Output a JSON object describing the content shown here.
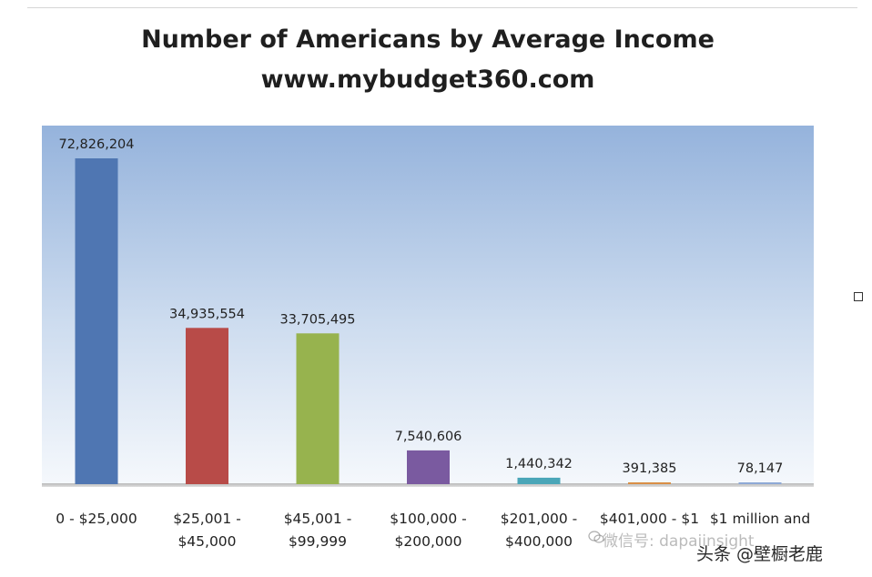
{
  "chart_data": {
    "type": "bar",
    "title": "Number of Americans by Average Income",
    "subtitle": "www.mybudget360.com",
    "xlabel": "",
    "ylabel": "",
    "ylim": [
      0,
      72826204
    ],
    "grid": false,
    "categories": [
      [
        "0 - $25,000"
      ],
      [
        "$25,001 -",
        "$45,000"
      ],
      [
        "$45,001 -",
        "$99,999"
      ],
      [
        "$100,000 -",
        "$200,000"
      ],
      [
        "$201,000 -",
        "$400,000"
      ],
      [
        "$401,000 - $1"
      ],
      [
        "$1 million and"
      ]
    ],
    "values": [
      72826204,
      34935554,
      33705495,
      7540606,
      1440342,
      391385,
      78147
    ],
    "value_labels": [
      "72,826,204",
      "34,935,554",
      "33,705,495",
      "7,540,606",
      "1,440,342",
      "391,385",
      "78,147"
    ],
    "colors": [
      "#4f76b2",
      "#b84b48",
      "#97b34e",
      "#7a5aa0",
      "#4aa6b8",
      "#d98f46",
      "#8ea9d6"
    ]
  },
  "watermark": {
    "wechat_text": "微信号: dapaiinsight",
    "toutiao_text": "头条 @壁橱老鹿",
    "wechat_icon": "wechat-icon"
  },
  "side_marker_icon": "square-outline-icon"
}
